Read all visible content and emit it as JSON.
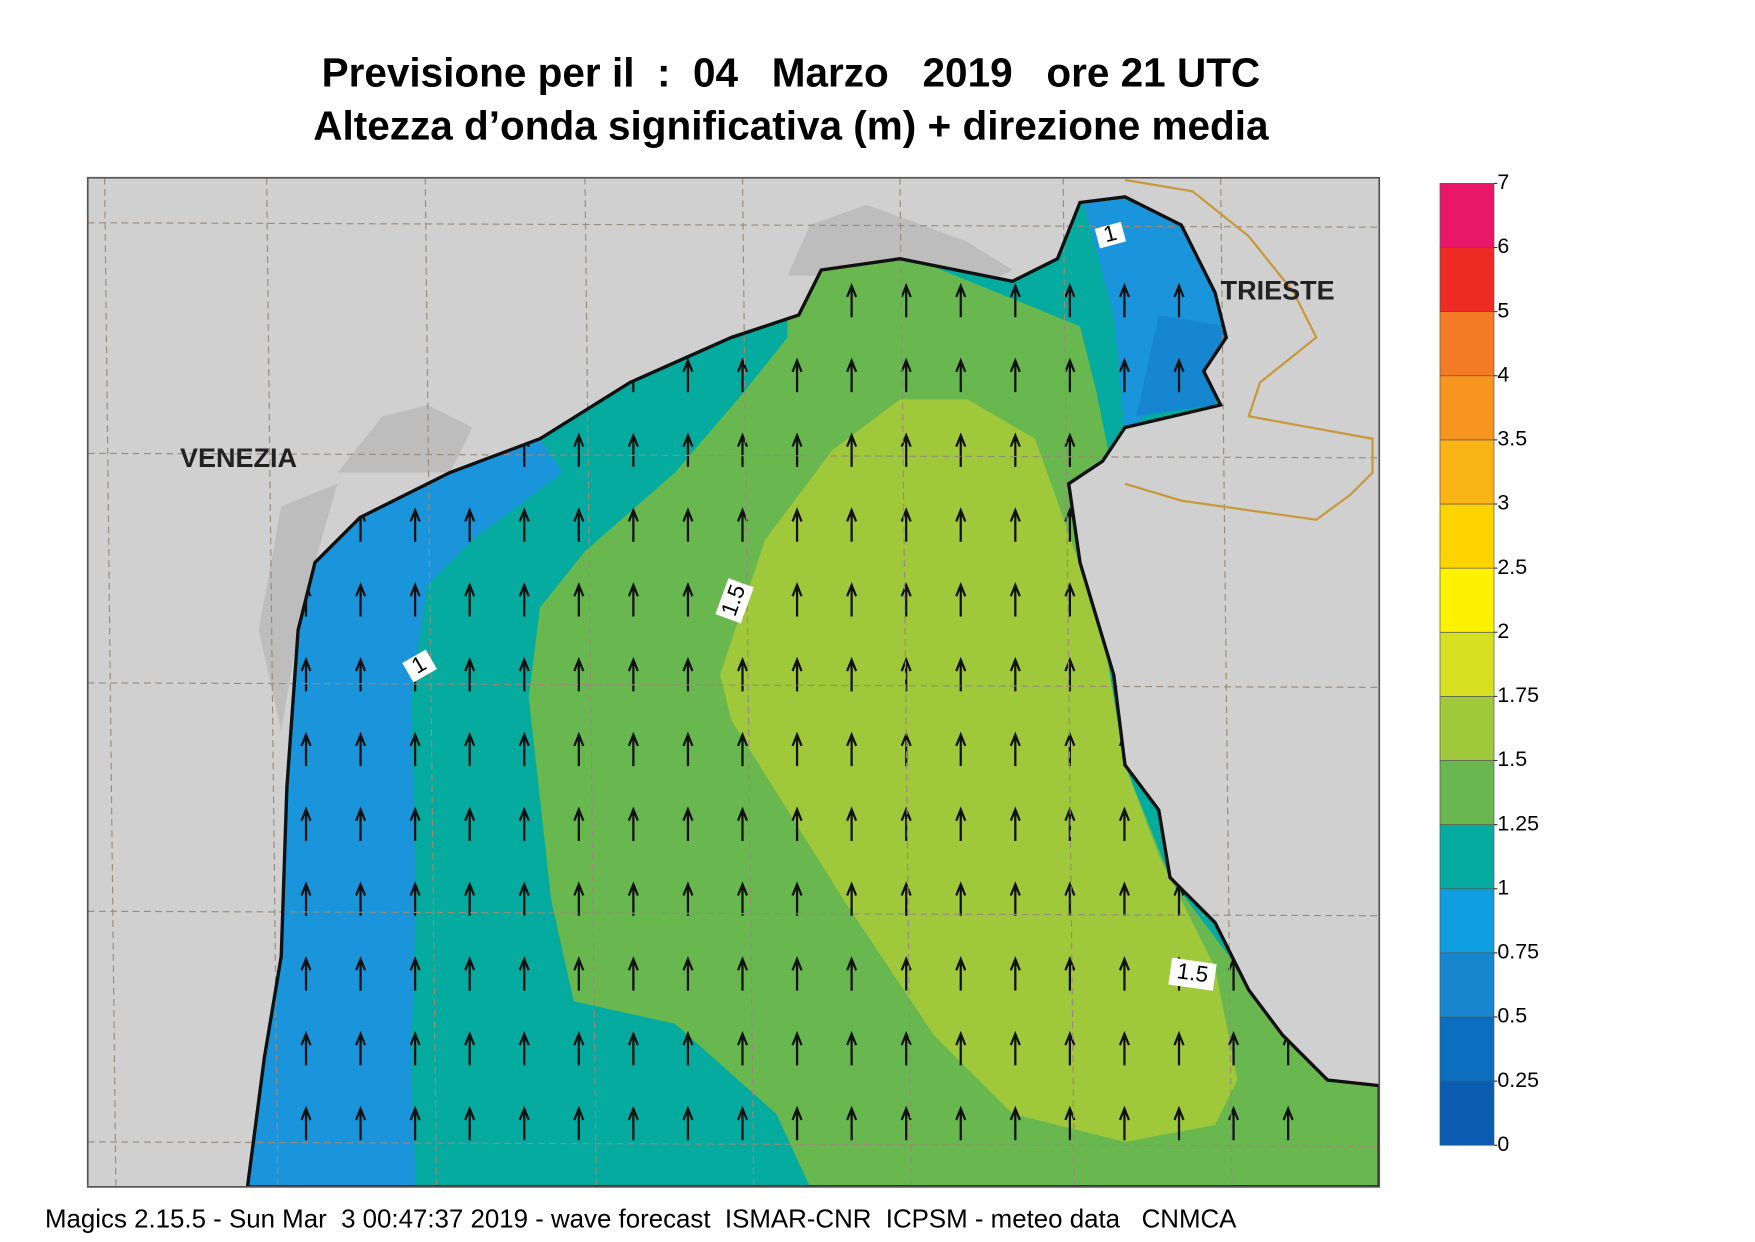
{
  "header": {
    "title": "Previsione per il  :  04   Marzo   2019   ore 21 UTC",
    "subtitle": "Altezza d’onda significativa (m) + direzione media"
  },
  "map": {
    "places": [
      "VENEZIA",
      "TRIESTE"
    ],
    "contour_labels": [
      "1",
      "1.5",
      "1",
      "1.5"
    ]
  },
  "colorbar": {
    "levels": [
      0,
      0.25,
      0.5,
      0.75,
      1,
      1.25,
      1.5,
      1.75,
      2,
      2.5,
      3,
      3.5,
      4,
      5,
      6,
      7
    ],
    "colors": [
      "#0a5cb0",
      "#0b6ebf",
      "#1786cf",
      "#0f9fe0",
      "#05ab9f",
      "#68b84f",
      "#a0c83b",
      "#d6e021",
      "#fff200",
      "#fdd400",
      "#fbb416",
      "#f8951f",
      "#f47b26",
      "#ee2b25",
      "#e9176a"
    ]
  },
  "footer": "Magics 2.15.5 - Sun Mar  3 00:47:37 2019 - wave forecast  ISMAR-CNR  ICPSM - meteo data   CNMCA"
}
